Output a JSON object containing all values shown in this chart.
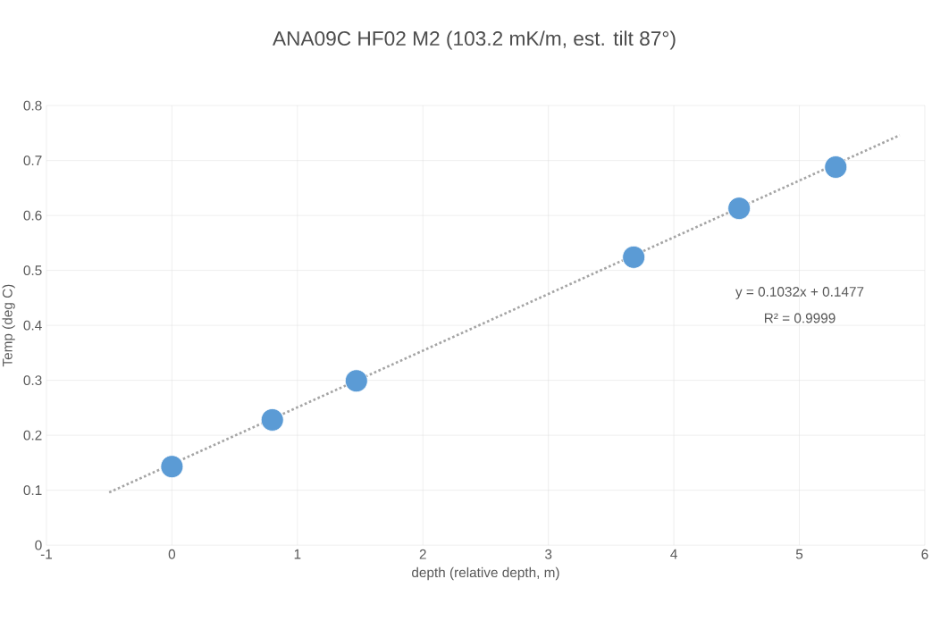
{
  "chart_data": {
    "type": "scatter",
    "title": "ANA09C HF02 M2 (103.2 mK/m, est. tilt 87°)",
    "xlabel": "depth (relative depth, m)",
    "ylabel": "Temp (deg C)",
    "series": [
      {
        "type": "scatter",
        "color": "#5b9bd5",
        "marker": "circle",
        "x": [
          0,
          0.8,
          1.47,
          3.68,
          4.52,
          5.29
        ],
        "values": [
          0.143,
          0.228,
          0.299,
          0.524,
          0.613,
          0.688
        ]
      },
      {
        "type": "line",
        "color": "#a5a5a5",
        "marker": "none",
        "line_style": "dotted",
        "x": [
          -0.5,
          5.8
        ],
        "values": [
          0.096,
          0.746
        ]
      }
    ],
    "annotations": [
      "y = 0.1032x + 0.1477",
      "R² = 0.9999"
    ],
    "xlim": [
      -1,
      6
    ],
    "xticks": [
      -1,
      0,
      1,
      2,
      3,
      4,
      5,
      6
    ],
    "ylim": [
      0,
      0.8
    ],
    "yticks": [
      0,
      0.1,
      0.2,
      0.3,
      0.4,
      0.5,
      0.6,
      0.7,
      0.8
    ],
    "grid": true
  }
}
